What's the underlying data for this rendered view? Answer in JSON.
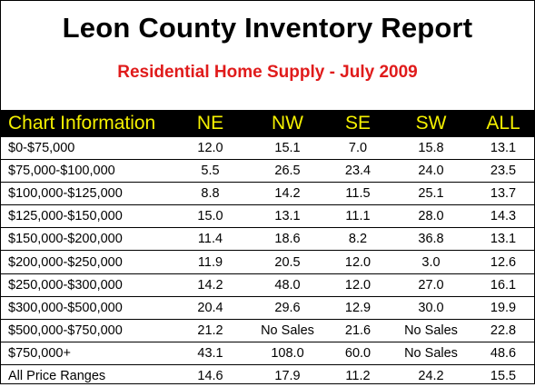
{
  "chart_data": {
    "type": "table",
    "title": "Leon County Inventory Report",
    "subtitle": "Residential Home Supply - July 2009",
    "columns": [
      "Chart Information",
      "NE",
      "NW",
      "SE",
      "SW",
      "ALL"
    ],
    "rows": [
      {
        "label": "$0-$75,000",
        "values": [
          "12.0",
          "15.1",
          "7.0",
          "15.8",
          "13.1"
        ]
      },
      {
        "label": "$75,000-$100,000",
        "values": [
          "5.5",
          "26.5",
          "23.4",
          "24.0",
          "23.5"
        ]
      },
      {
        "label": "$100,000-$125,000",
        "values": [
          "8.8",
          "14.2",
          "11.5",
          "25.1",
          "13.7"
        ]
      },
      {
        "label": "$125,000-$150,000",
        "values": [
          "15.0",
          "13.1",
          "11.1",
          "28.0",
          "14.3"
        ]
      },
      {
        "label": "$150,000-$200,000",
        "values": [
          "11.4",
          "18.6",
          "8.2",
          "36.8",
          "13.1"
        ]
      },
      {
        "label": "$200,000-$250,000",
        "values": [
          "11.9",
          "20.5",
          "12.0",
          "3.0",
          "12.6"
        ]
      },
      {
        "label": "$250,000-$300,000",
        "values": [
          "14.2",
          "48.0",
          "12.0",
          "27.0",
          "16.1"
        ]
      },
      {
        "label": "$300,000-$500,000",
        "values": [
          "20.4",
          "29.6",
          "12.9",
          "30.0",
          "19.9"
        ]
      },
      {
        "label": "$500,000-$750,000",
        "values": [
          "21.2",
          "No Sales",
          "21.6",
          "No Sales",
          "22.8"
        ]
      },
      {
        "label": "$750,000+",
        "values": [
          "43.1",
          "108.0",
          "60.0",
          "No Sales",
          "48.6"
        ]
      },
      {
        "label": "All Price Ranges",
        "values": [
          "14.6",
          "17.9",
          "11.2",
          "24.2",
          "15.5"
        ]
      }
    ],
    "colors": {
      "header_bg": "#000000",
      "header_text": "#f4f000",
      "subtitle": "#e01b1b"
    }
  }
}
